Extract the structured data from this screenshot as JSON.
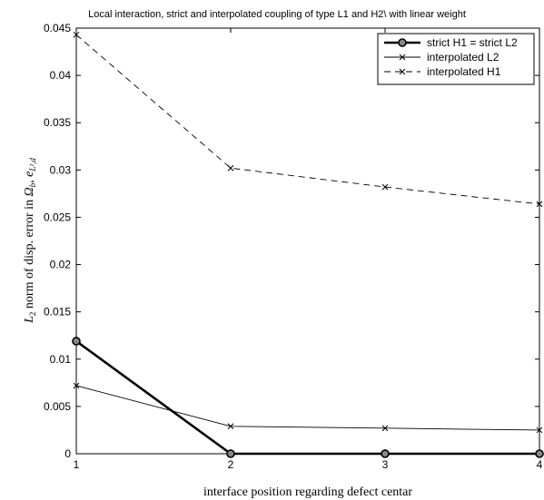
{
  "chart_data": {
    "type": "line",
    "title": "Local interaction, strict and interpolated coupling of type L1 and H2\\ with linear weight",
    "xlabel": "interface position regarding defect centar",
    "ylabel": "L2 norm of disp. error in Ωb, eL2,d",
    "ylabel_parts": {
      "L": "L",
      "two": "2",
      "rest": " norm of disp. error in ",
      "omega": "Ω",
      "b": "b",
      "comma": ", ",
      "e": "e",
      "L2d": "L²,d"
    },
    "x": [
      1,
      2,
      3,
      4
    ],
    "xlim": [
      1,
      4
    ],
    "ylim": [
      0,
      0.045
    ],
    "xticks": [
      "1",
      "2",
      "3",
      "4"
    ],
    "yticks": [
      "0",
      "0.005",
      "0.01",
      "0.015",
      "0.02",
      "0.025",
      "0.03",
      "0.035",
      "0.04",
      "0.045"
    ],
    "grid": false,
    "legend_position": "top-right",
    "series": [
      {
        "name": "strict H1 = strict L2",
        "values": [
          0.0119,
          0.0,
          0.0,
          0.0
        ],
        "style": "solid-thick",
        "marker": "circle",
        "color": "#000000"
      },
      {
        "name": "interpolated L2",
        "values": [
          0.0072,
          0.0029,
          0.0027,
          0.0025
        ],
        "style": "solid-thin",
        "marker": "x",
        "color": "#000000"
      },
      {
        "name": "interpolated H1",
        "values": [
          0.0443,
          0.0302,
          0.0282,
          0.0264
        ],
        "style": "dashed",
        "marker": "x",
        "color": "#000000"
      }
    ]
  }
}
